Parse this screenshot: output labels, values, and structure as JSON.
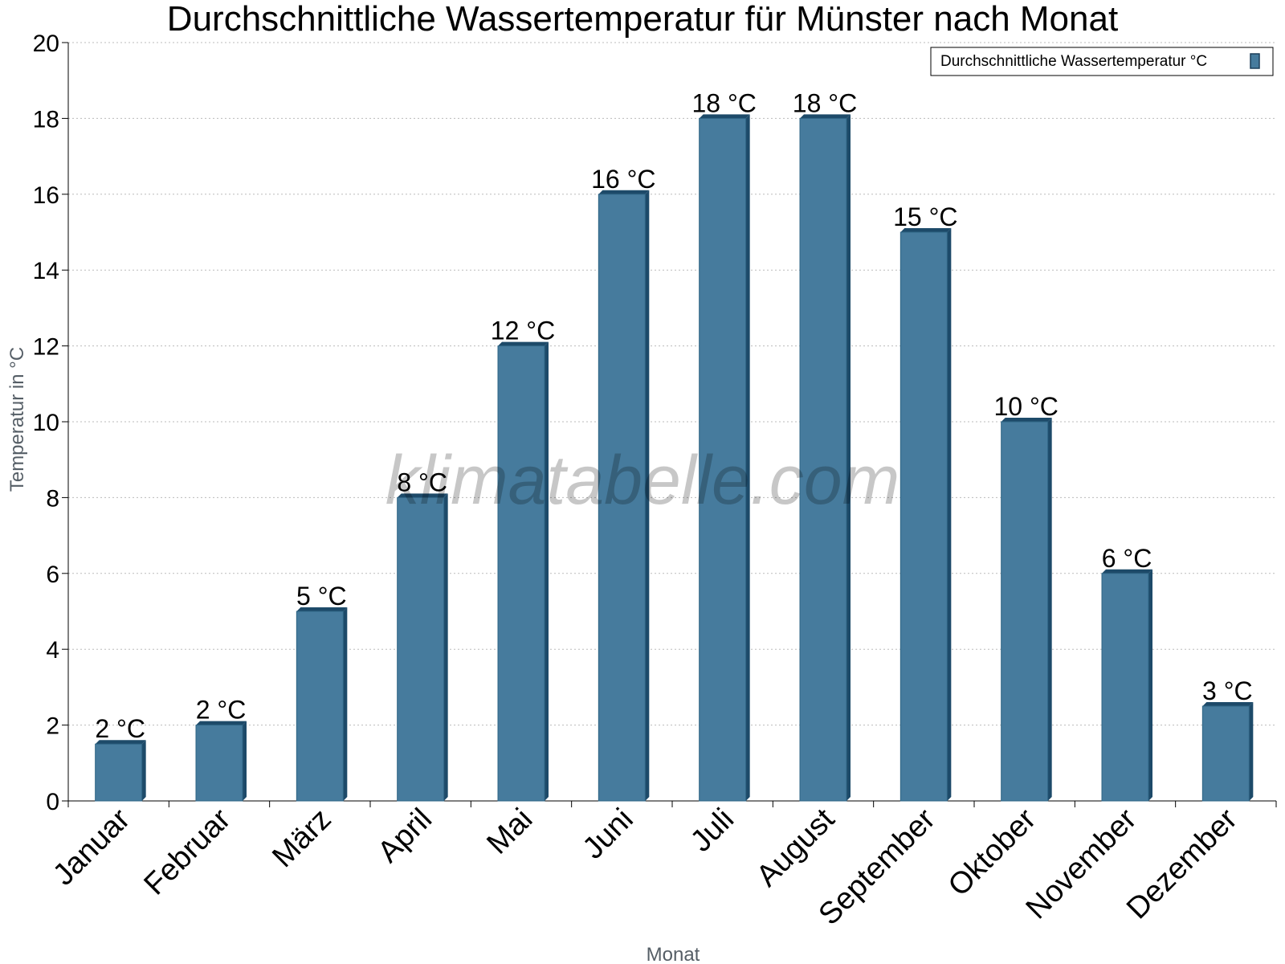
{
  "chart_data": {
    "type": "bar",
    "title": "Durchschnittliche Wassertemperatur für Münster nach Monat",
    "xlabel": "Monat",
    "ylabel": "Temperatur in °C",
    "ylim": [
      0,
      20
    ],
    "yticks": [
      0,
      2,
      4,
      6,
      8,
      10,
      12,
      14,
      16,
      18,
      20
    ],
    "grid": true,
    "legend_position": "top-right",
    "categories": [
      "Januar",
      "Februar",
      "März",
      "April",
      "Mai",
      "Juni",
      "Juli",
      "August",
      "September",
      "Oktober",
      "November",
      "Dezember"
    ],
    "series": [
      {
        "name": "Durchschnittliche Wassertemperatur °C",
        "color": "#467b9d",
        "values": [
          1.5,
          2,
          5,
          8,
          12,
          16,
          18,
          18,
          15,
          10,
          6,
          2.5
        ],
        "labels": [
          "2 °C",
          "2 °C",
          "5 °C",
          "8 °C",
          "12 °C",
          "16 °C",
          "18 °C",
          "18 °C",
          "15 °C",
          "10 °C",
          "6 °C",
          "3 °C"
        ]
      }
    ],
    "watermark": "klimatabelle.com"
  }
}
